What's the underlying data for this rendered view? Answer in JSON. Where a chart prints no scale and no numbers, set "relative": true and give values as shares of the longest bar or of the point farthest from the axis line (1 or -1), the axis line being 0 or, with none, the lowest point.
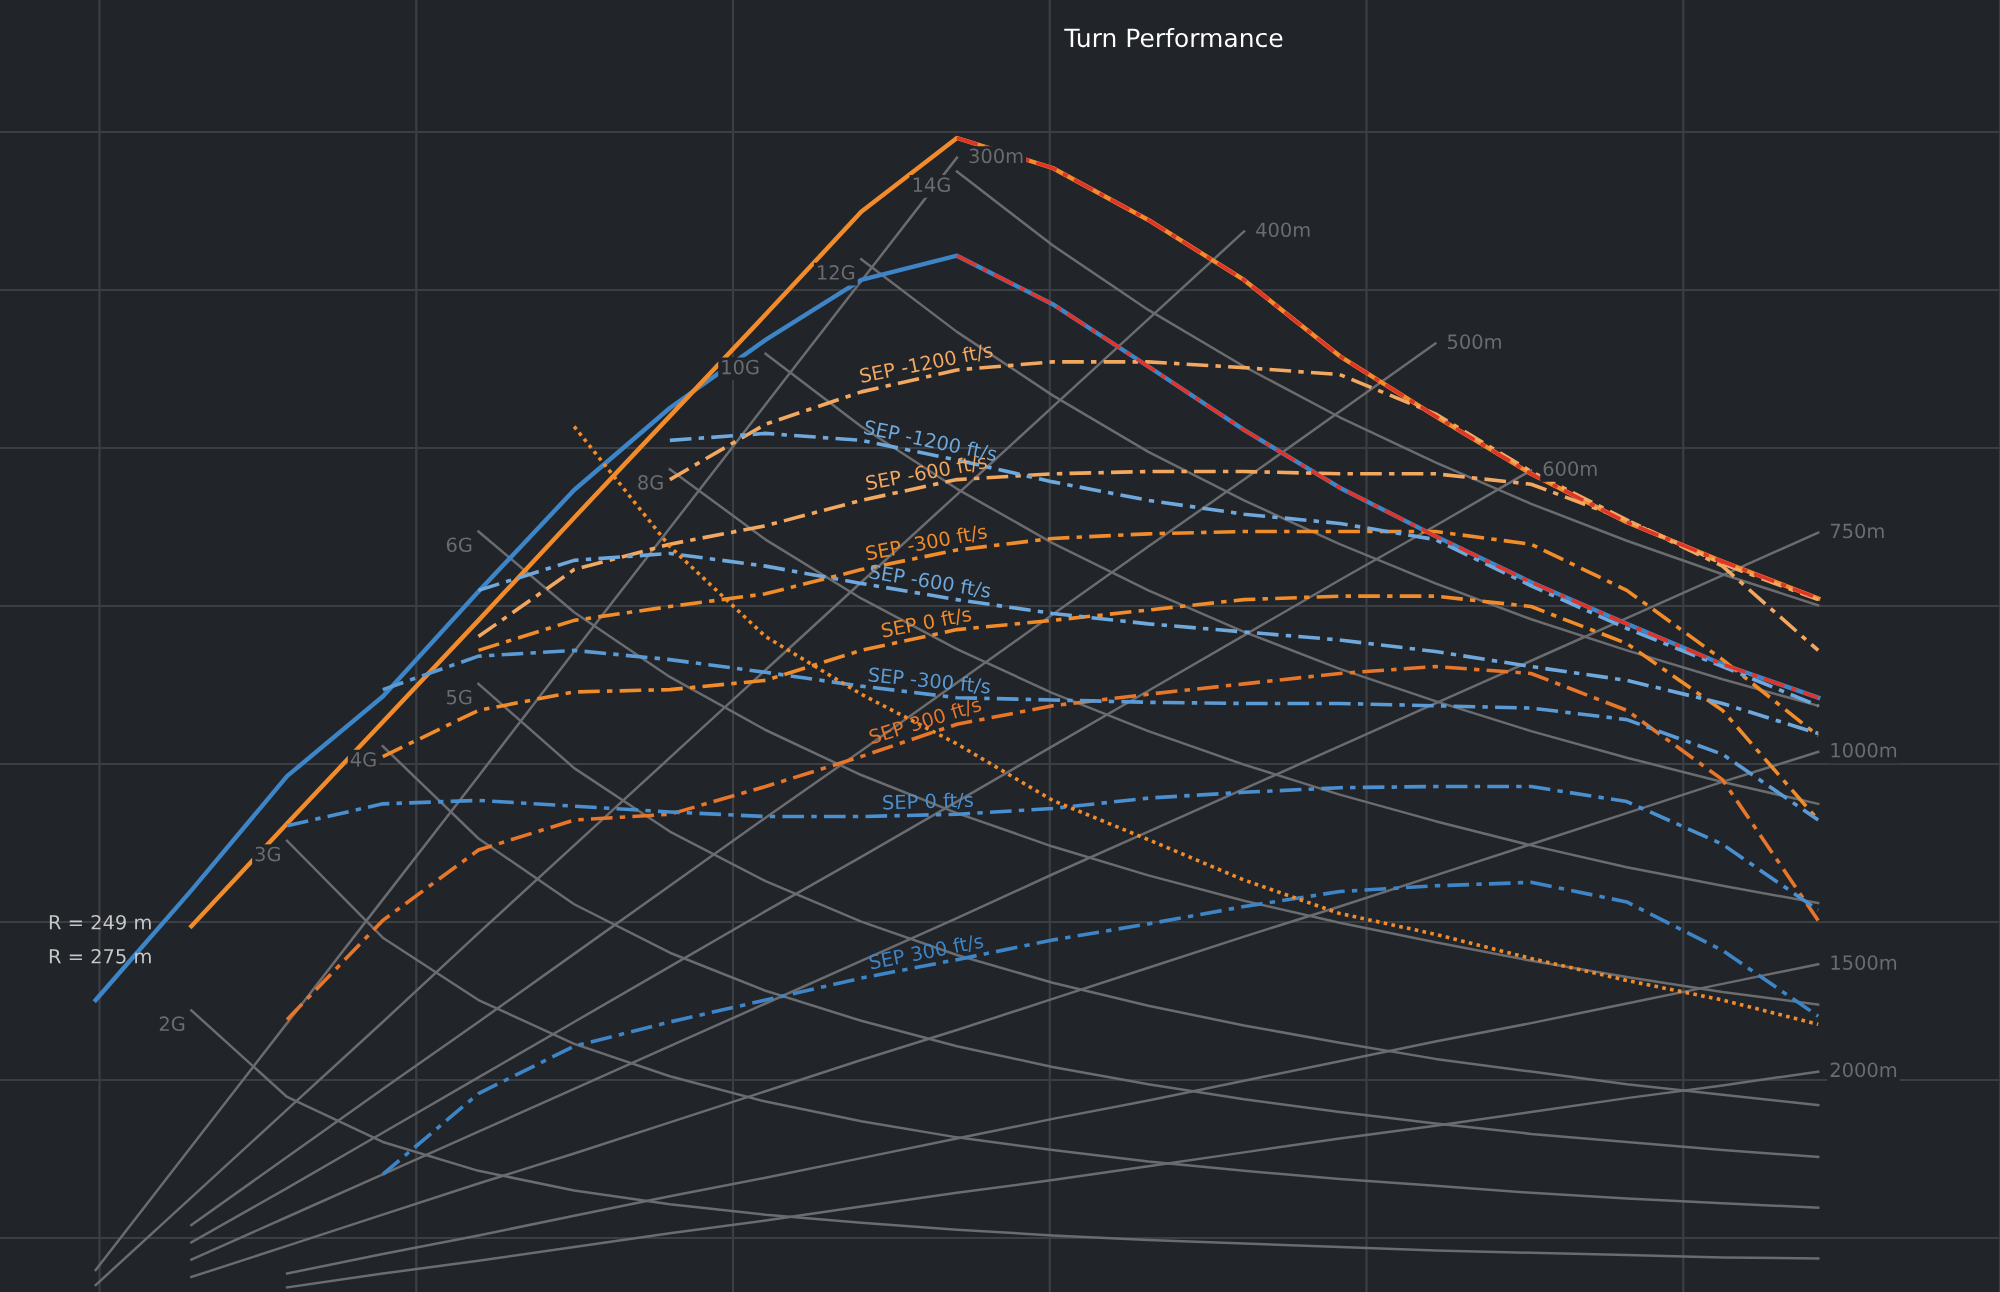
{
  "chart_data": {
    "type": "line",
    "title": "Turn Performance",
    "relative": true,
    "grid": true,
    "categories": [
      null,
      null,
      null,
      null,
      null,
      null,
      null,
      null,
      null,
      null,
      null,
      null,
      null,
      null,
      null,
      null,
      null,
      null,
      null,
      null,
      null
    ],
    "annotations": [
      "R = 249 m",
      "R = 275 m"
    ],
    "series": [
      {
        "name": "2G",
        "color": "#6a6c70",
        "line_style": "solid",
        "values": [
          null,
          null,
          0.244,
          0.169,
          0.13,
          0.105,
          0.088,
          0.076,
          0.067,
          0.06,
          0.054,
          0.049,
          0.045,
          0.042,
          0.039,
          0.036,
          0.034,
          0.032,
          0.03,
          0.029,
          null
        ]
      },
      {
        "name": "3G",
        "color": "#6a6c70",
        "line_style": "solid",
        "values": [
          null,
          null,
          null,
          0.391,
          0.307,
          0.253,
          0.215,
          0.187,
          0.165,
          0.148,
          0.134,
          0.123,
          0.113,
          0.105,
          0.098,
          0.092,
          0.086,
          0.081,
          0.077,
          0.073,
          null
        ]
      },
      {
        "name": "4G",
        "color": "#6a6c70",
        "line_style": "solid",
        "values": [
          null,
          null,
          null,
          null,
          0.473,
          0.393,
          0.336,
          0.294,
          0.261,
          0.235,
          0.213,
          0.195,
          0.18,
          0.167,
          0.156,
          0.146,
          0.137,
          0.13,
          0.123,
          0.117,
          null
        ]
      },
      {
        "name": "5G",
        "color": "#6a6c70",
        "line_style": "solid",
        "values": [
          null,
          null,
          null,
          null,
          null,
          0.527,
          0.454,
          0.399,
          0.356,
          0.321,
          0.292,
          0.268,
          0.248,
          0.231,
          0.216,
          0.202,
          0.191,
          0.18,
          0.171,
          0.162,
          null
        ]
      },
      {
        "name": "6G",
        "color": "#6a6c70",
        "line_style": "solid",
        "values": [
          null,
          null,
          null,
          null,
          null,
          0.659,
          0.589,
          0.533,
          0.487,
          0.448,
          0.415,
          0.386,
          0.361,
          0.339,
          0.32,
          0.303,
          0.287,
          0.273,
          0.26,
          0.249,
          null
        ]
      },
      {
        "name": "8G",
        "color": "#6a6c70",
        "line_style": "solid",
        "values": [
          null,
          null,
          null,
          null,
          null,
          null,
          null,
          0.713,
          0.652,
          0.601,
          0.557,
          0.519,
          0.486,
          0.457,
          0.431,
          0.408,
          0.387,
          0.368,
          0.352,
          0.337,
          null
        ]
      },
      {
        "name": "10G",
        "color": "#6a6c70",
        "line_style": "solid",
        "values": [
          null,
          null,
          null,
          null,
          null,
          null,
          null,
          null,
          0.813,
          0.75,
          0.696,
          0.649,
          0.608,
          0.572,
          0.54,
          0.512,
          0.486,
          0.463,
          0.442,
          0.423,
          null
        ]
      },
      {
        "name": "12G",
        "color": "#6a6c70",
        "line_style": "solid",
        "values": [
          null,
          null,
          null,
          null,
          null,
          null,
          null,
          null,
          null,
          0.895,
          0.832,
          0.777,
          0.728,
          0.686,
          0.648,
          0.614,
          0.583,
          0.556,
          0.531,
          0.508,
          null
        ]
      },
      {
        "name": "14G",
        "color": "#6a6c70",
        "line_style": "solid",
        "values": [
          null,
          null,
          null,
          null,
          null,
          null,
          null,
          null,
          null,
          null,
          0.971,
          0.907,
          0.851,
          0.802,
          0.758,
          0.719,
          0.683,
          0.651,
          0.622,
          0.595,
          null
        ]
      },
      {
        "name": "300m",
        "color": "#6a6c70",
        "line_style": "solid",
        "values": [
          null,
          0.019,
          0.126,
          0.233,
          0.34,
          0.447,
          0.555,
          0.662,
          0.769,
          0.876,
          0.983,
          null,
          null,
          null,
          null,
          null,
          null,
          null,
          null,
          null,
          null
        ]
      },
      {
        "name": "400m",
        "color": "#6a6c70",
        "line_style": "solid",
        "values": [
          null,
          0.006,
          0.082,
          0.158,
          0.234,
          0.311,
          0.387,
          0.463,
          0.539,
          0.615,
          0.691,
          0.767,
          0.843,
          0.919,
          null,
          null,
          null,
          null,
          null,
          null,
          null
        ]
      },
      {
        "name": "500m",
        "color": "#6a6c70",
        "line_style": "solid",
        "values": [
          null,
          null,
          0.058,
          0.117,
          0.176,
          0.234,
          0.293,
          0.352,
          0.411,
          0.469,
          0.528,
          0.587,
          0.646,
          0.704,
          0.763,
          0.822,
          null,
          null,
          null,
          null,
          null
        ]
      },
      {
        "name": "600m",
        "color": "#6a6c70",
        "line_style": "solid",
        "values": [
          null,
          null,
          0.043,
          0.09,
          0.138,
          0.186,
          0.234,
          0.282,
          0.33,
          0.377,
          0.425,
          0.473,
          0.521,
          0.569,
          0.617,
          0.664,
          0.712,
          null,
          null,
          null,
          null
        ]
      },
      {
        "name": "750m",
        "color": "#6a6c70",
        "line_style": "solid",
        "values": [
          null,
          null,
          0.028,
          0.065,
          0.102,
          0.139,
          0.176,
          0.213,
          0.25,
          0.287,
          0.324,
          0.362,
          0.399,
          0.436,
          0.473,
          0.51,
          0.547,
          0.584,
          0.621,
          0.658,
          null
        ]
      },
      {
        "name": "1000m",
        "color": "#6a6c70",
        "line_style": "solid",
        "values": [
          null,
          null,
          0.013,
          0.04,
          0.067,
          0.094,
          0.12,
          0.147,
          0.174,
          0.201,
          0.227,
          0.254,
          0.281,
          0.308,
          0.334,
          0.361,
          0.388,
          0.415,
          0.442,
          0.468,
          null
        ]
      },
      {
        "name": "1500m",
        "color": "#6a6c70",
        "line_style": "solid",
        "values": [
          null,
          null,
          null,
          0.016,
          0.033,
          0.049,
          0.066,
          0.083,
          0.099,
          0.116,
          0.133,
          0.15,
          0.166,
          0.183,
          0.2,
          0.217,
          0.233,
          0.25,
          0.267,
          0.284,
          null
        ]
      },
      {
        "name": "2000m",
        "color": "#6a6c70",
        "line_style": "solid",
        "values": [
          null,
          null,
          null,
          0.004,
          0.016,
          0.027,
          0.039,
          0.051,
          0.062,
          0.074,
          0.086,
          0.097,
          0.109,
          0.121,
          0.133,
          0.144,
          0.156,
          0.168,
          0.179,
          0.191,
          null
        ]
      },
      {
        "color": "#3d85c6",
        "line_style": "solid",
        "values": [
          null,
          0.253,
          0.348,
          0.447,
          0.516,
          0.607,
          0.695,
          0.766,
          0.825,
          0.877,
          0.898,
          0.856,
          0.802,
          0.747,
          0.697,
          0.655,
          0.615,
          0.579,
          0.544,
          0.515,
          null
        ]
      },
      {
        "color": "#f28b2a",
        "line_style": "solid",
        "values": [
          null,
          null,
          0.317,
          0.406,
          0.494,
          0.582,
          0.671,
          0.759,
          0.847,
          0.936,
          1.0,
          0.974,
          0.929,
          0.877,
          0.811,
          0.759,
          0.709,
          0.667,
          0.633,
          0.601,
          null
        ]
      },
      {
        "name": "SEP -1200 ft/s",
        "color": "#f2a860",
        "line_style": "dashed",
        "values": [
          null,
          null,
          null,
          null,
          null,
          null,
          null,
          0.704,
          0.752,
          0.78,
          0.799,
          0.806,
          0.806,
          0.801,
          0.795,
          0.761,
          0.711,
          0.669,
          0.631,
          0.6,
          null
        ]
      },
      {
        "name": "SEP -600 ft/s",
        "color": "#f2a860",
        "line_style": "dashed",
        "values": [
          null,
          null,
          null,
          null,
          null,
          0.568,
          0.626,
          0.648,
          0.664,
          0.686,
          0.704,
          0.709,
          0.711,
          0.711,
          0.709,
          0.709,
          0.7,
          0.669,
          0.629,
          0.556,
          null
        ]
      },
      {
        "name": "SEP -300 ft/s",
        "color": "#f28b2a",
        "line_style": "dashed",
        "values": [
          null,
          null,
          null,
          null,
          null,
          0.556,
          0.582,
          0.594,
          0.605,
          0.626,
          0.643,
          0.653,
          0.657,
          0.659,
          0.659,
          0.659,
          0.648,
          0.608,
          0.548,
          0.482,
          null
        ]
      },
      {
        "name": "SEP 0 ft/s",
        "color": "#f28b2a",
        "line_style": "dashed",
        "values": [
          null,
          null,
          null,
          null,
          0.464,
          0.504,
          0.52,
          0.522,
          0.53,
          0.556,
          0.574,
          0.582,
          0.591,
          0.6,
          0.603,
          0.603,
          0.594,
          0.562,
          0.504,
          0.409,
          null
        ]
      },
      {
        "name": "SEP 300 ft/s",
        "color": "#e8762a",
        "line_style": "dashed",
        "values": [
          null,
          null,
          null,
          0.236,
          0.322,
          0.383,
          0.409,
          0.414,
          0.438,
          0.464,
          0.492,
          0.508,
          0.518,
          0.527,
          0.536,
          0.542,
          0.536,
          0.504,
          0.444,
          0.322,
          null
        ]
      },
      {
        "name": "SEP -1200 ft/s",
        "color": "#6fa8dc",
        "line_style": "dashed",
        "values": [
          null,
          null,
          null,
          null,
          null,
          null,
          null,
          0.738,
          0.744,
          0.738,
          0.721,
          0.702,
          0.686,
          0.674,
          0.666,
          0.652,
          0.612,
          0.575,
          0.542,
          0.508,
          null
        ]
      },
      {
        "name": "SEP -600 ft/s",
        "color": "#6fa8dc",
        "line_style": "dashed",
        "values": [
          null,
          null,
          null,
          null,
          null,
          0.608,
          0.634,
          0.64,
          0.629,
          0.614,
          0.6,
          0.588,
          0.579,
          0.572,
          0.565,
          0.555,
          0.542,
          0.53,
          0.51,
          0.484,
          null
        ]
      },
      {
        "name": "SEP -300 ft/s",
        "color": "#5b9bd5",
        "line_style": "dashed",
        "values": [
          null,
          null,
          null,
          null,
          0.522,
          0.551,
          0.556,
          0.548,
          0.537,
          0.525,
          0.515,
          0.513,
          0.511,
          0.51,
          0.51,
          0.508,
          0.506,
          0.496,
          0.466,
          0.409,
          null
        ]
      },
      {
        "name": "SEP 0 ft/s",
        "color": "#4a8fd0",
        "line_style": "dashed",
        "values": [
          null,
          null,
          null,
          0.404,
          0.423,
          0.426,
          0.421,
          0.416,
          0.412,
          0.412,
          0.414,
          0.419,
          0.428,
          0.433,
          0.437,
          0.438,
          0.438,
          0.425,
          0.388,
          0.331,
          null
        ]
      },
      {
        "name": "SEP 300 ft/s",
        "color": "#3d85c6",
        "line_style": "dashed",
        "values": [
          null,
          null,
          null,
          null,
          0.102,
          0.172,
          0.213,
          0.234,
          0.253,
          0.272,
          0.288,
          0.305,
          0.319,
          0.334,
          0.347,
          0.352,
          0.355,
          0.338,
          0.296,
          0.239,
          null
        ]
      },
      {
        "color": "#f28b2a",
        "line_style": "dotted",
        "values": [
          null,
          null,
          null,
          null,
          null,
          null,
          0.75,
          0.646,
          0.568,
          0.518,
          0.475,
          0.426,
          0.392,
          0.357,
          0.328,
          0.31,
          0.289,
          0.27,
          0.253,
          0.232,
          null
        ]
      },
      {
        "color": "#e0342a",
        "line_style": "dashed",
        "values": [
          null,
          null,
          null,
          null,
          null,
          null,
          null,
          null,
          null,
          null,
          1.0,
          0.974,
          0.929,
          0.877,
          0.811,
          0.759,
          0.709,
          0.667,
          0.633,
          0.601,
          null
        ]
      },
      {
        "color": "#e0342a",
        "line_style": "dashed",
        "values": [
          null,
          null,
          null,
          null,
          null,
          null,
          null,
          null,
          null,
          null,
          0.898,
          0.856,
          0.802,
          0.747,
          0.697,
          0.655,
          0.615,
          0.579,
          0.544,
          0.515,
          null
        ]
      }
    ]
  }
}
